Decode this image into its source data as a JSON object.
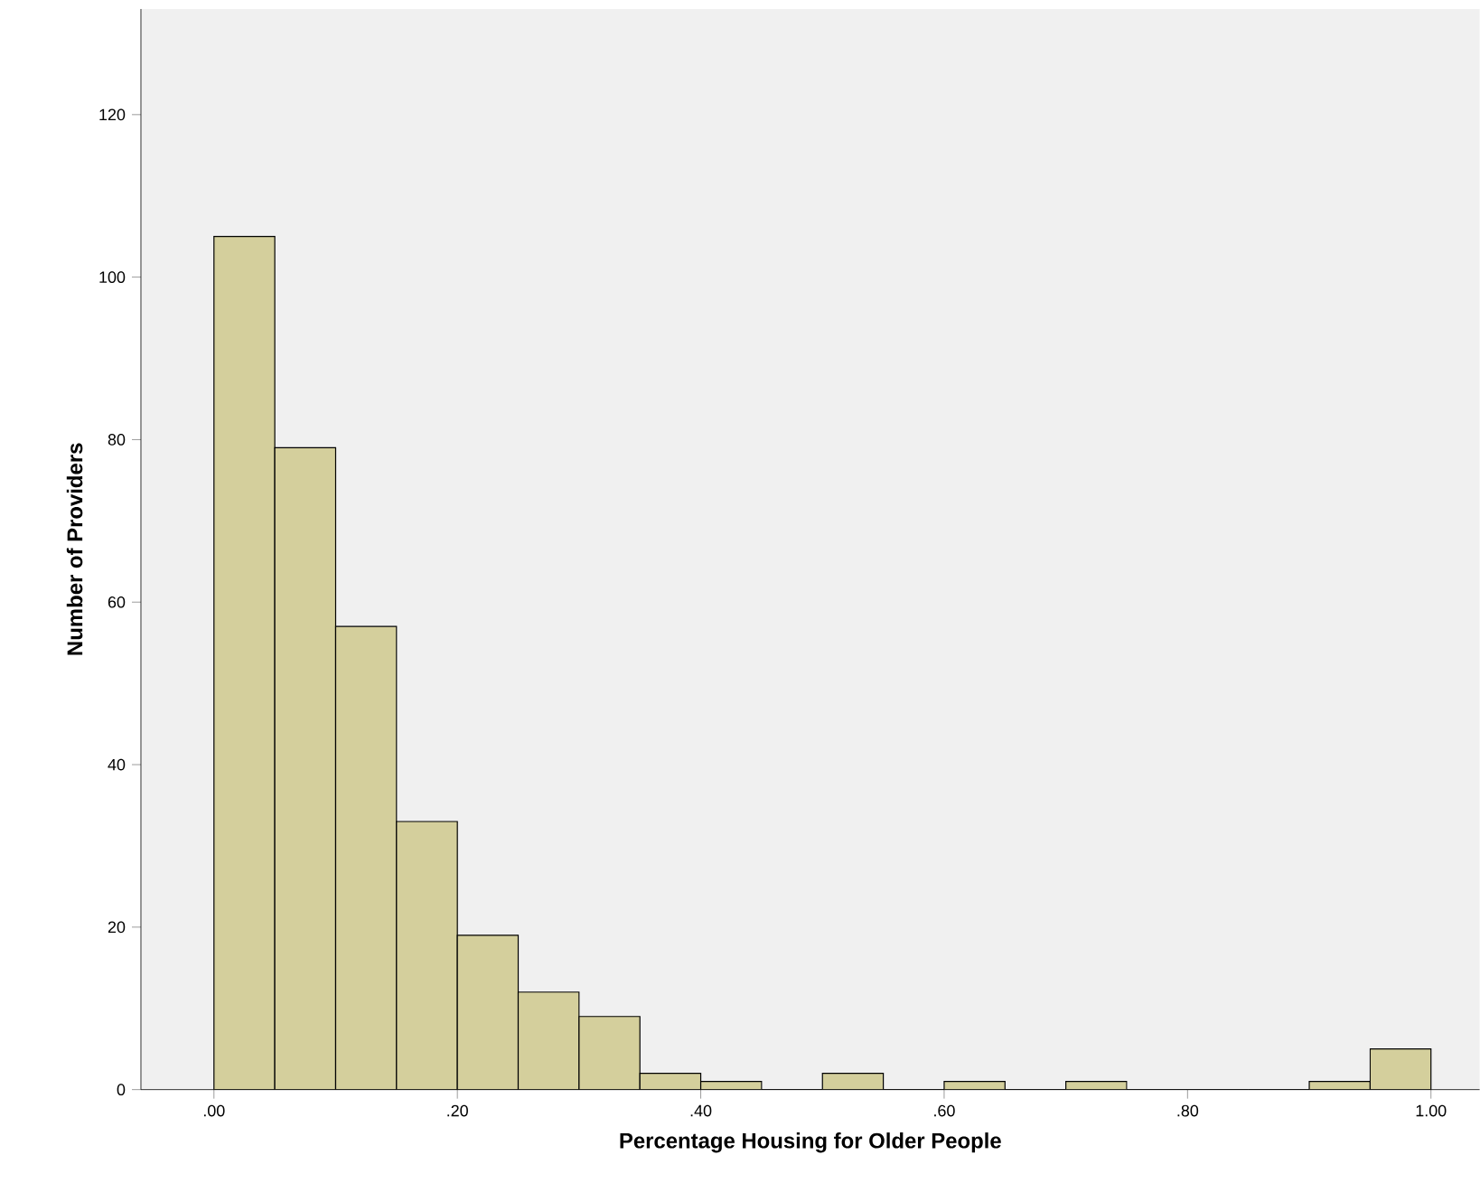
{
  "chart_data": {
    "type": "histogram",
    "xlabel": "Percentage Housing for Older People",
    "ylabel": "Number of Providers",
    "bins": [
      0,
      0.05,
      0.1,
      0.15,
      0.2,
      0.25,
      0.3,
      0.35,
      0.4,
      0.45,
      0.5,
      0.55,
      0.6,
      0.65,
      0.7,
      0.75,
      0.8,
      0.85,
      0.9,
      0.95,
      1.0
    ],
    "values": [
      105,
      79,
      57,
      33,
      19,
      12,
      9,
      2,
      1,
      0,
      2,
      0,
      1,
      0,
      1,
      0,
      0,
      0,
      1,
      5
    ],
    "color": "#d4cf9c",
    "xlim": [
      -0.06,
      1.04
    ],
    "ylim": [
      0,
      133
    ],
    "xticks": [
      {
        "value": 0,
        "label": ".00"
      },
      {
        "value": 0.2,
        "label": ".20"
      },
      {
        "value": 0.4,
        "label": ".40"
      },
      {
        "value": 0.6,
        "label": ".60"
      },
      {
        "value": 0.8,
        "label": ".80"
      },
      {
        "value": 1.0,
        "label": "1.00"
      }
    ],
    "yticks": [
      0,
      20,
      40,
      60,
      80,
      100,
      120
    ],
    "grid": false
  }
}
